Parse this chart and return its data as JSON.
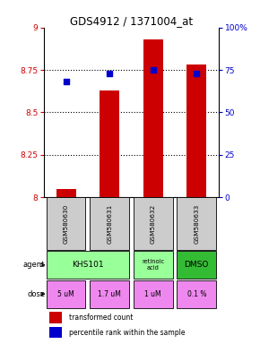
{
  "title": "GDS4912 / 1371004_at",
  "samples": [
    "GSM580630",
    "GSM580631",
    "GSM580632",
    "GSM580633"
  ],
  "bar_values": [
    8.05,
    8.63,
    8.93,
    8.78
  ],
  "percentile_values": [
    68,
    73,
    75,
    73
  ],
  "ylim_left": [
    8.0,
    9.0
  ],
  "ylim_right": [
    0,
    100
  ],
  "yticks_left": [
    8.0,
    8.25,
    8.5,
    8.75,
    9.0
  ],
  "yticks_right": [
    0,
    25,
    50,
    75,
    100
  ],
  "ytick_labels_left": [
    "8",
    "8.25",
    "8.5",
    "8.75",
    "9"
  ],
  "ytick_labels_right": [
    "0",
    "25",
    "50",
    "75",
    "100%"
  ],
  "bar_color": "#cc0000",
  "dot_color": "#0000cc",
  "bar_bottom": 8.0,
  "dose_labels": [
    "5 uM",
    "1.7 uM",
    "1 uM",
    "0.1 %"
  ],
  "dose_color": "#ee88ee",
  "sample_bg_color": "#cccccc",
  "left_axis_color": "#cc0000",
  "right_axis_color": "#0000cc",
  "khs_color": "#99ff99",
  "ret_color": "#99ff99",
  "dmso_color": "#33bb33"
}
